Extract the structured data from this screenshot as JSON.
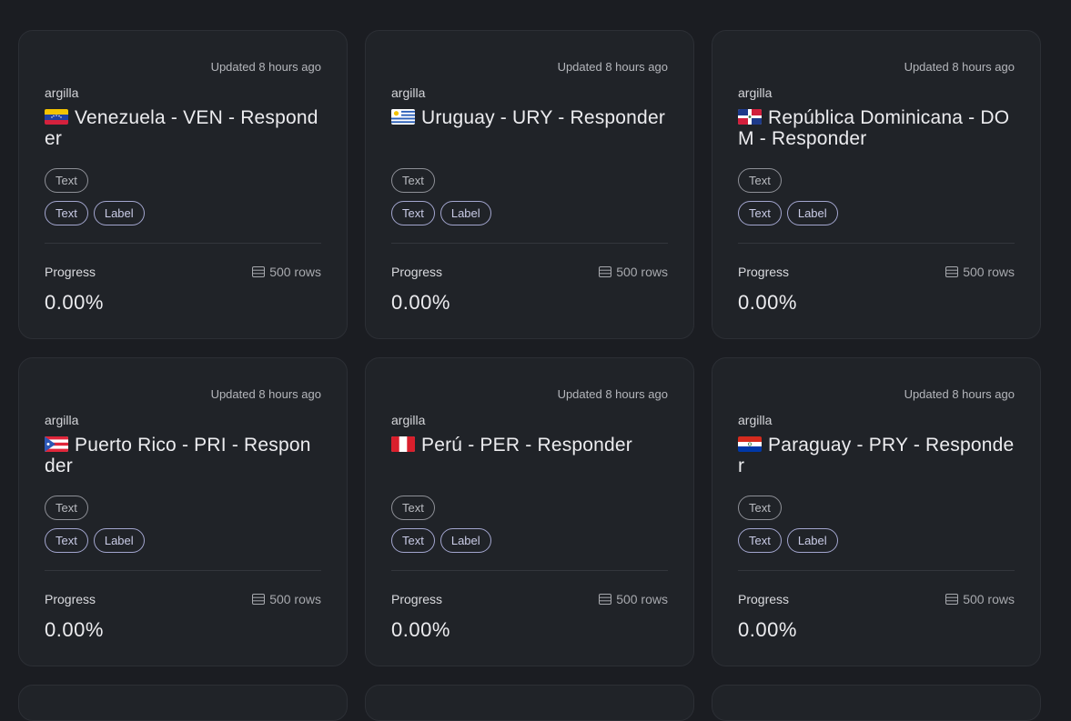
{
  "datasets": [
    {
      "updated": "Updated 8 hours ago",
      "owner": "argilla",
      "title": "Venezuela - VEN - Responder",
      "flag_icon": "venezuela-flag-icon",
      "field_tags": [
        "Text"
      ],
      "question_tags": [
        "Text",
        "Label"
      ],
      "progress_label": "Progress",
      "rows": "500 rows",
      "progress": "0.00%"
    },
    {
      "updated": "Updated 8 hours ago",
      "owner": "argilla",
      "title": "Uruguay - URY - Responder",
      "flag_icon": "uruguay-flag-icon",
      "field_tags": [
        "Text"
      ],
      "question_tags": [
        "Text",
        "Label"
      ],
      "progress_label": "Progress",
      "rows": "500 rows",
      "progress": "0.00%"
    },
    {
      "updated": "Updated 8 hours ago",
      "owner": "argilla",
      "title": "República Dominicana - DOM - Responder",
      "flag_icon": "dominican-republic-flag-icon",
      "field_tags": [
        "Text"
      ],
      "question_tags": [
        "Text",
        "Label"
      ],
      "progress_label": "Progress",
      "rows": "500 rows",
      "progress": "0.00%"
    },
    {
      "updated": "Updated 8 hours ago",
      "owner": "argilla",
      "title": "Puerto Rico - PRI - Responder",
      "flag_icon": "puerto-rico-flag-icon",
      "field_tags": [
        "Text"
      ],
      "question_tags": [
        "Text",
        "Label"
      ],
      "progress_label": "Progress",
      "rows": "500 rows",
      "progress": "0.00%"
    },
    {
      "updated": "Updated 8 hours ago",
      "owner": "argilla",
      "title": "Perú - PER - Responder",
      "flag_icon": "peru-flag-icon",
      "field_tags": [
        "Text"
      ],
      "question_tags": [
        "Text",
        "Label"
      ],
      "progress_label": "Progress",
      "rows": "500 rows",
      "progress": "0.00%"
    },
    {
      "updated": "Updated 8 hours ago",
      "owner": "argilla",
      "title": "Paraguay - PRY - Responder",
      "flag_icon": "paraguay-flag-icon",
      "field_tags": [
        "Text"
      ],
      "question_tags": [
        "Text",
        "Label"
      ],
      "progress_label": "Progress",
      "rows": "500 rows",
      "progress": "0.00%"
    }
  ],
  "colors": {
    "background": "#1b1d22",
    "card": "#202328",
    "card_border": "#2c2f35",
    "question_tag_border": "#a3a6cf"
  }
}
